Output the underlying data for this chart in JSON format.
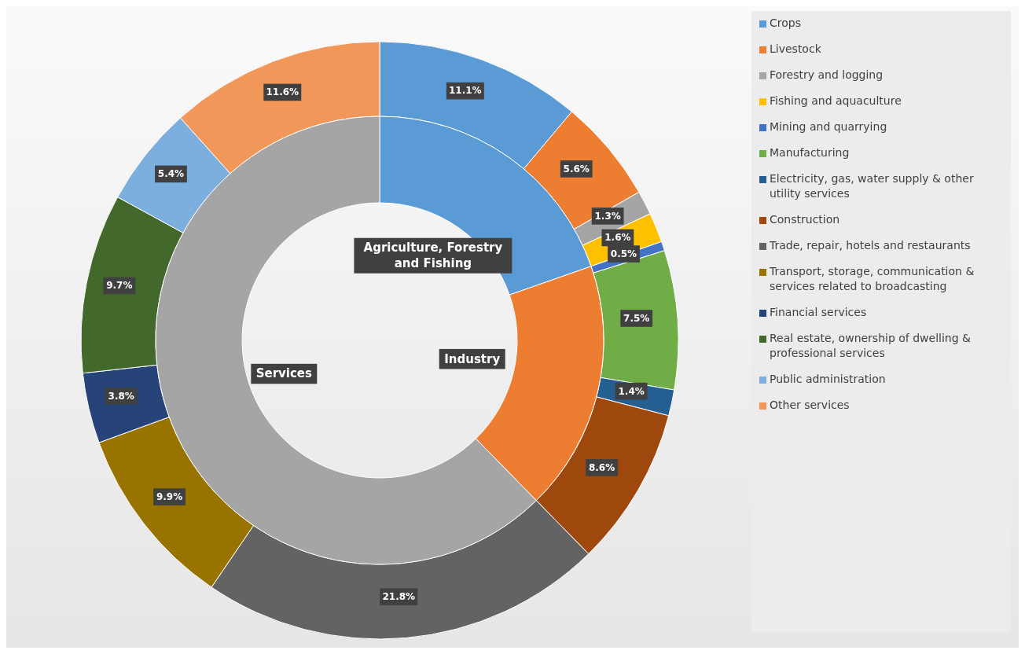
{
  "chart_data": [
    {
      "type": "donut",
      "legend": "right",
      "categories": [
        "Crops",
        "Livestock",
        "Forestry and logging",
        "Fishing and aquaculture",
        "Mining and quarrying",
        "Manufacturing",
        "Electricity, gas, water supply & other utility services",
        "Construction",
        "Trade, repair, hotels and restaurants",
        "Transport, storage, communication & services related to broadcasting",
        "Financial services",
        "Real estate, ownership of dwelling & professional services",
        "Public administration",
        "Other services"
      ],
      "values": [
        11.1,
        5.6,
        1.3,
        1.6,
        0.5,
        7.5,
        1.4,
        8.6,
        21.8,
        9.9,
        3.8,
        9.7,
        5.4,
        11.6
      ],
      "value_labels": [
        "11.1%",
        "5.6%",
        "1.3%",
        "1.6%",
        "0.5%",
        "7.5%",
        "1.4%",
        "8.6%",
        "21.8%",
        "9.9%",
        "3.8%",
        "9.7%",
        "5.4%",
        "11.6%"
      ],
      "colors": [
        "#5b9bd5",
        "#ed7d31",
        "#a5a5a5",
        "#ffc000",
        "#4472c4",
        "#70ad47",
        "#255e91",
        "#9e480e",
        "#636363",
        "#997300",
        "#264478",
        "#43682b",
        "#7cafdd",
        "#f1975a"
      ]
    },
    {
      "type": "donut",
      "categories": [
        "Agriculture, Forestry and Fishing",
        "Industry",
        "Services"
      ],
      "values": [
        19.6,
        18.0,
        62.2
      ],
      "colors": [
        "#5b9bd5",
        "#ed7d31",
        "#a5a5a5"
      ]
    }
  ]
}
